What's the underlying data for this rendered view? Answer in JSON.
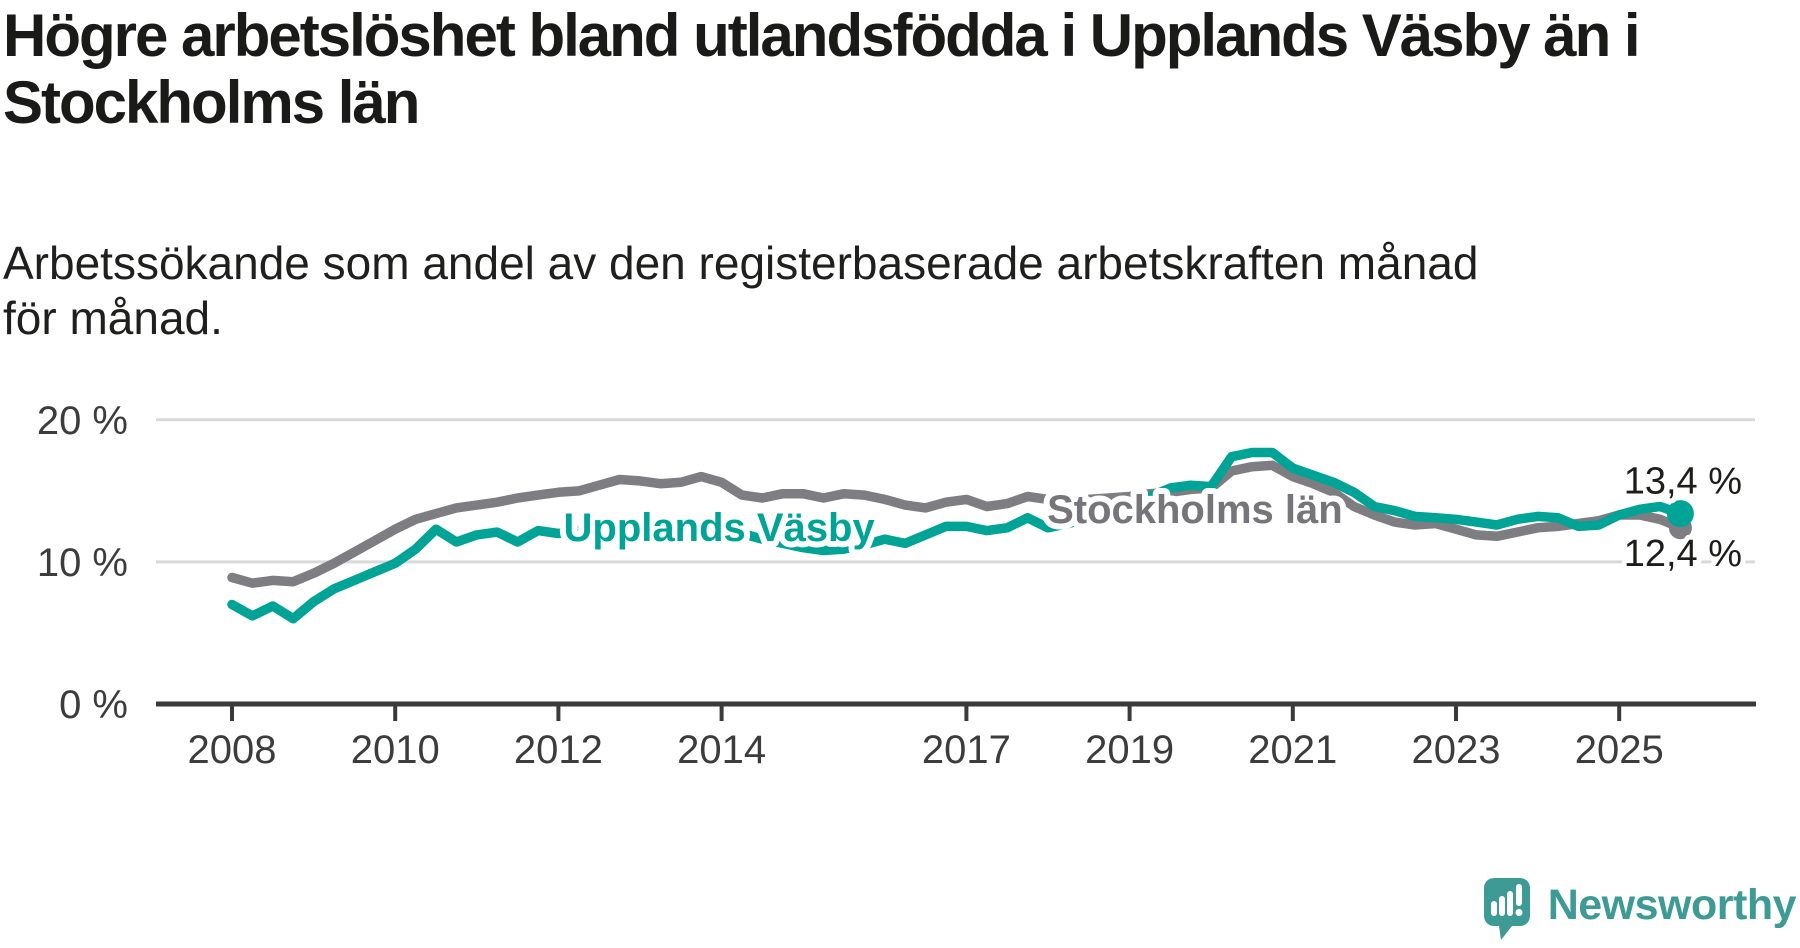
{
  "header": {
    "title": "Högre arbetslöshet bland utlandsfödda i Upplands Väsby än i Stockholms län",
    "subtitle": "Arbetssökande som andel av den registerbaserade arbetskraften månad för månad."
  },
  "branding": {
    "name": "Newsworthy",
    "logo_icon": "bar-chart-exclamation-speech-bubble",
    "color": "#3d9a94"
  },
  "chart_data": {
    "type": "line",
    "title": "Högre arbetslöshet bland utlandsfödda i Upplands Väsby än i Stockholms län",
    "subtitle": "Arbetssökande som andel av den registerbaserade arbetskraften månad för månad.",
    "grid": "horizontal",
    "legend_position": "inline-labels",
    "x_start": 2008.0,
    "x_step": 0.25,
    "xlim": [
      2008.0,
      2025.75
    ],
    "ylim": [
      0,
      21
    ],
    "x_ticks": [
      {
        "value": 2008,
        "label": "2008"
      },
      {
        "value": 2010,
        "label": "2010"
      },
      {
        "value": 2012,
        "label": "2012"
      },
      {
        "value": 2014,
        "label": "2014"
      },
      {
        "value": 2017,
        "label": "2017"
      },
      {
        "value": 2019,
        "label": "2019"
      },
      {
        "value": 2021,
        "label": "2021"
      },
      {
        "value": 2023,
        "label": "2023"
      },
      {
        "value": 2025,
        "label": "2025"
      }
    ],
    "y_ticks": [
      {
        "value": 0,
        "label": "0 %"
      },
      {
        "value": 10,
        "label": "10 %"
      },
      {
        "value": 20,
        "label": "20 %"
      }
    ],
    "colors": {
      "grid": "#d9d9d9",
      "axis": "#3a3a3a",
      "tick_label": "#3c3c3c",
      "end_label": "#1d1d1b"
    },
    "series": [
      {
        "name": "Stockholms län",
        "color": "#7e7e82",
        "label_color": "#76767a",
        "label_x_year": 2019.8,
        "label_value": 12.74,
        "end_label": "12,4 %",
        "end_label_position": "below",
        "end_dot": true,
        "values": [
          8.9,
          8.5,
          8.7,
          8.6,
          9.2,
          9.9,
          10.7,
          11.5,
          12.3,
          13.0,
          13.4,
          13.8,
          14.0,
          14.2,
          14.5,
          14.7,
          14.9,
          15.0,
          15.4,
          15.8,
          15.7,
          15.5,
          15.6,
          16.0,
          15.6,
          14.7,
          14.5,
          14.8,
          14.8,
          14.5,
          14.8,
          14.7,
          14.4,
          14.0,
          13.8,
          14.2,
          14.4,
          13.9,
          14.1,
          14.6,
          14.4,
          14.3,
          14.4,
          14.5,
          14.6,
          14.8,
          14.9,
          15.1,
          15.2,
          16.4,
          16.7,
          16.8,
          16.0,
          15.5,
          14.9,
          13.9,
          13.3,
          12.8,
          12.6,
          12.7,
          12.3,
          11.9,
          11.8,
          12.1,
          12.4,
          12.5,
          12.7,
          12.9,
          13.3,
          13.3,
          13.0,
          12.4
        ]
      },
      {
        "name": "Upplands Väsby",
        "color": "#00a496",
        "label_color": "#00a496",
        "label_x_year": 2013.97,
        "label_value": 11.47,
        "end_label": "13,4 %",
        "end_label_position": "above",
        "end_dot": true,
        "values": [
          7.0,
          6.2,
          6.9,
          6.0,
          7.2,
          8.1,
          8.7,
          9.3,
          9.9,
          10.9,
          12.3,
          11.4,
          11.9,
          12.1,
          11.4,
          12.2,
          12.0,
          12.2,
          12.4,
          12.3,
          12.5,
          12.7,
          12.8,
          12.6,
          12.4,
          12.0,
          11.6,
          11.3,
          11.0,
          10.8,
          10.9,
          11.2,
          11.6,
          11.3,
          11.9,
          12.5,
          12.5,
          12.2,
          12.4,
          13.1,
          12.4,
          12.7,
          13.1,
          13.5,
          13.9,
          14.6,
          15.2,
          15.4,
          15.3,
          17.4,
          17.7,
          17.7,
          16.6,
          16.1,
          15.6,
          14.9,
          13.9,
          13.6,
          13.2,
          13.1,
          13.0,
          12.8,
          12.6,
          13.0,
          13.2,
          13.1,
          12.5,
          12.6,
          13.3,
          13.7,
          13.9,
          13.4
        ]
      }
    ]
  }
}
